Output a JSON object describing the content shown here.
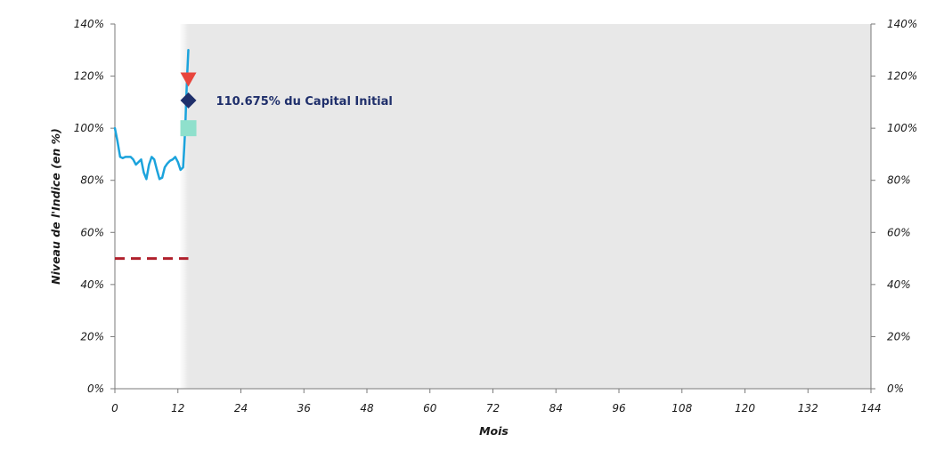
{
  "chart_data": {
    "type": "line",
    "xlabel": "Mois",
    "ylabel": "Niveau de l'Indice (en %)",
    "xlim": [
      0,
      144
    ],
    "ylim": [
      0,
      140
    ],
    "x_ticks": [
      0,
      12,
      24,
      36,
      48,
      60,
      72,
      84,
      96,
      108,
      120,
      132,
      144
    ],
    "y_ticks": [
      0,
      20,
      40,
      60,
      80,
      100,
      120,
      140
    ],
    "y_tick_labels": [
      "0%",
      "20%",
      "40%",
      "60%",
      "80%",
      "100%",
      "120%",
      "140%"
    ],
    "right_axis_mirrored": true,
    "grid": false,
    "shaded_region": {
      "x_start": 14,
      "x_end": 144,
      "color": "#e8e8e8"
    },
    "colors": {
      "index_line": "#1ba3dc",
      "barrier_line": "#b0202c",
      "down_triangle": "#e8453c",
      "diamond": "#1f2f6b",
      "square": "#8fe0cc",
      "annotation_text": "#1f2f6b"
    },
    "series": [
      {
        "style": "solid",
        "x": [
          0,
          0.5,
          1,
          1.5,
          2,
          2.5,
          3,
          3.5,
          4,
          4.5,
          5,
          5.5,
          6,
          6.5,
          7,
          7.5,
          8,
          8.5,
          9,
          9.5,
          10,
          10.5,
          11,
          11.5,
          12,
          12.5,
          13,
          13.2,
          13.4,
          13.6,
          13.8,
          14
        ],
        "y": [
          100,
          95,
          89,
          88.5,
          89,
          89,
          89,
          88,
          86,
          87,
          88,
          83,
          80.5,
          86,
          89,
          88,
          84,
          80.5,
          81,
          85,
          86.5,
          87.5,
          88,
          89,
          87,
          84,
          85,
          92,
          100,
          112,
          122,
          130
        ]
      },
      {
        "style": "dashed",
        "x": [
          0,
          14
        ],
        "y": [
          50,
          50
        ]
      }
    ],
    "markers": [
      {
        "shape": "triangle-down",
        "x": 14,
        "y": 119
      },
      {
        "shape": "diamond",
        "x": 14,
        "y": 110.675
      },
      {
        "shape": "square",
        "x": 14,
        "y": 100
      }
    ],
    "annotations": [
      {
        "text": "110.675% du Capital Initial",
        "x": 14,
        "y": 110.675
      }
    ]
  }
}
